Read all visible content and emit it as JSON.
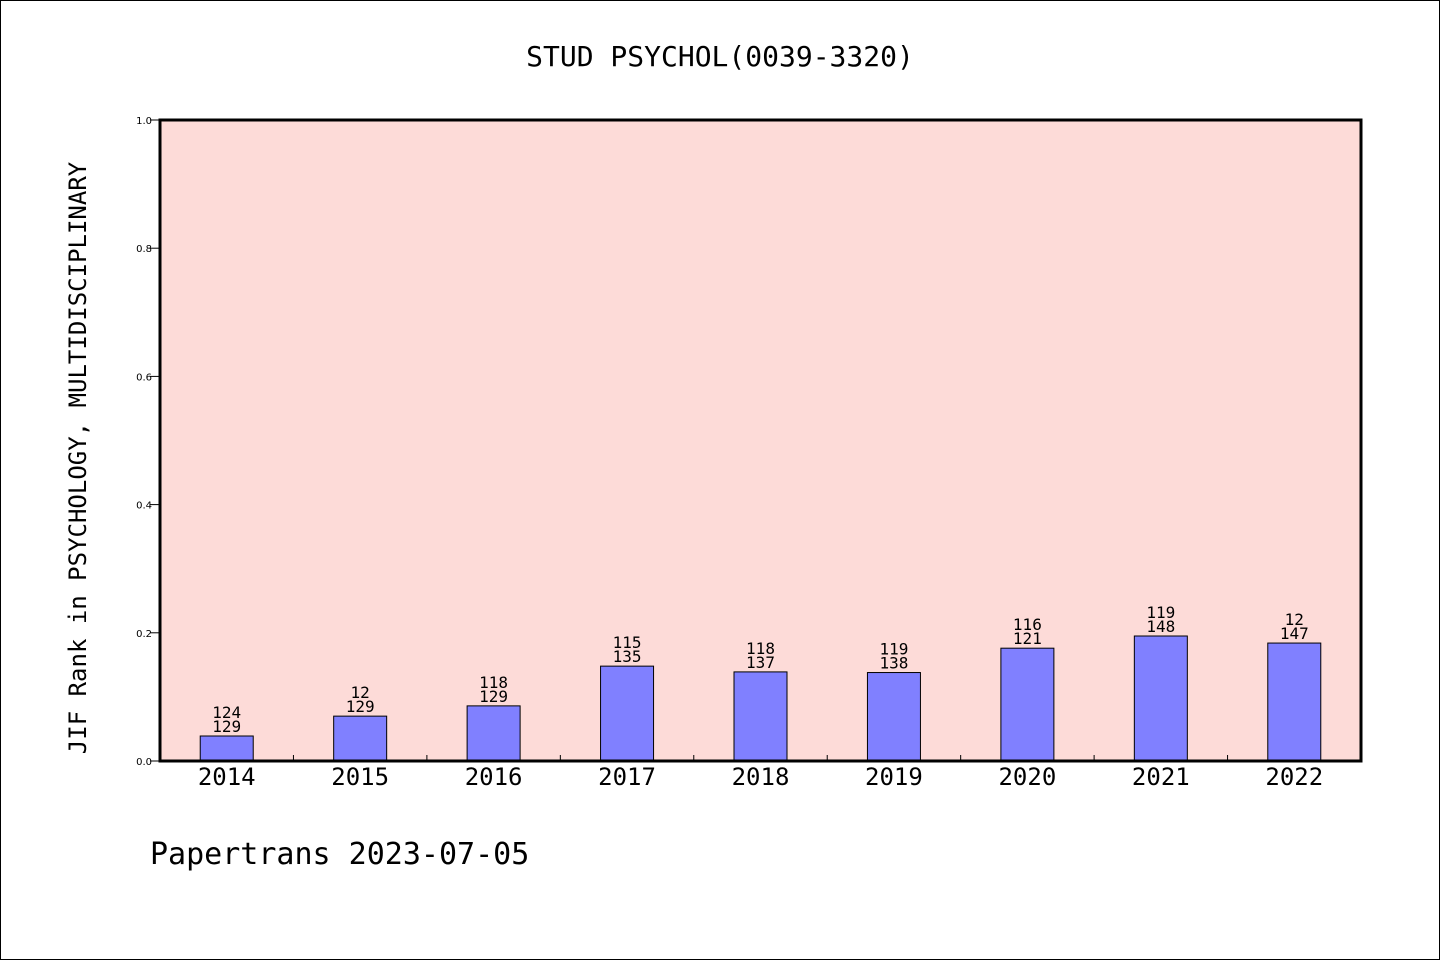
{
  "chart_data": {
    "type": "bar",
    "title": "STUD PSYCHOL(0039-3320)",
    "ylabel": "JIF Rank in PSYCHOLOGY, MULTIDISCIPLINARY",
    "xlabel": "",
    "categories": [
      "2014",
      "2015",
      "2016",
      "2017",
      "2018",
      "2019",
      "2020",
      "2021",
      "2022"
    ],
    "values": [
      0.039,
      0.07,
      0.086,
      0.148,
      0.139,
      0.138,
      0.176,
      0.195,
      0.184
    ],
    "rank_labels": [
      "124",
      "12",
      "118",
      "115",
      "118",
      "119",
      "116",
      "119",
      "12"
    ],
    "total_labels": [
      "129",
      "129",
      "129",
      "135",
      "137",
      "138",
      "121",
      "148",
      "147"
    ],
    "ylim": [
      0,
      1.0
    ],
    "yticks": [
      "0.0",
      "0.2",
      "0.4",
      "0.6",
      "0.8",
      "1.0"
    ],
    "grid": false,
    "colors": {
      "bar": "#8080ff",
      "plot_bg": "#fddbd8",
      "axis": "#000000"
    }
  },
  "footer": "Papertrans 2023-07-05"
}
